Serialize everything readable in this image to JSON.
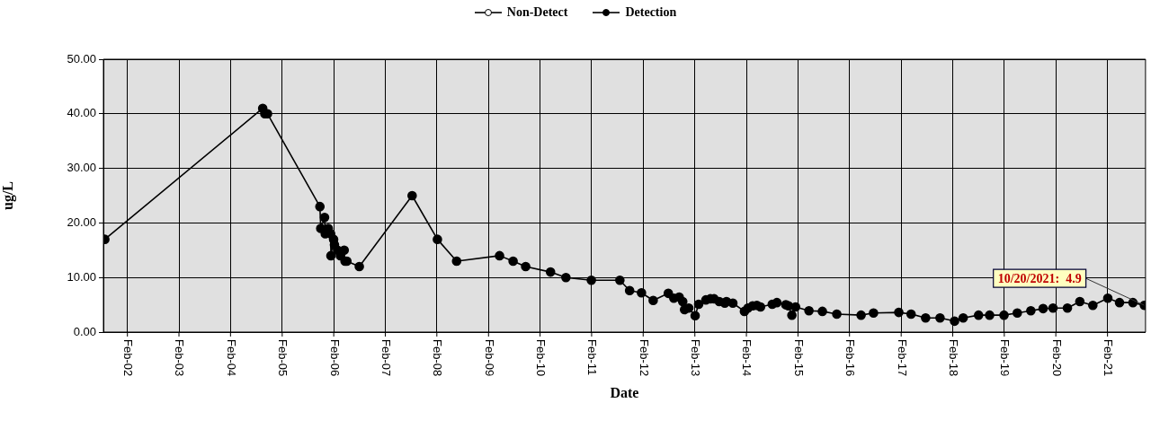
{
  "chart_data": {
    "type": "line",
    "xlabel": "Date",
    "ylabel": "ug/L",
    "xlim": [
      "2001-08-15",
      "2021-10-28"
    ],
    "xticks": [
      {
        "value": "2002-02-01",
        "label": "Feb-02"
      },
      {
        "value": "2003-02-01",
        "label": "Feb-03"
      },
      {
        "value": "2004-02-01",
        "label": "Feb-04"
      },
      {
        "value": "2005-02-01",
        "label": "Feb-05"
      },
      {
        "value": "2006-02-01",
        "label": "Feb-06"
      },
      {
        "value": "2007-02-01",
        "label": "Feb-07"
      },
      {
        "value": "2008-02-01",
        "label": "Feb-08"
      },
      {
        "value": "2009-02-01",
        "label": "Feb-09"
      },
      {
        "value": "2010-02-01",
        "label": "Feb-10"
      },
      {
        "value": "2011-02-01",
        "label": "Feb-11"
      },
      {
        "value": "2012-02-01",
        "label": "Feb-12"
      },
      {
        "value": "2013-02-01",
        "label": "Feb-13"
      },
      {
        "value": "2014-02-01",
        "label": "Feb-14"
      },
      {
        "value": "2015-02-01",
        "label": "Feb-15"
      },
      {
        "value": "2016-02-01",
        "label": "Feb-16"
      },
      {
        "value": "2017-02-01",
        "label": "Feb-17"
      },
      {
        "value": "2018-02-01",
        "label": "Feb-18"
      },
      {
        "value": "2019-02-01",
        "label": "Feb-19"
      },
      {
        "value": "2020-02-01",
        "label": "Feb-20"
      },
      {
        "value": "2021-02-01",
        "label": "Feb-21"
      }
    ],
    "ylim": [
      0,
      50
    ],
    "yticks": [
      {
        "value": 0,
        "label": "0.00"
      },
      {
        "value": 10,
        "label": "10.00"
      },
      {
        "value": 20,
        "label": "20.00"
      },
      {
        "value": 30,
        "label": "30.00"
      },
      {
        "value": 40,
        "label": "40.00"
      },
      {
        "value": 50,
        "label": "50.00"
      }
    ],
    "grid": true,
    "legend": "top",
    "marker": "circle",
    "line_style": "solid",
    "series": [
      {
        "name": "Non-Detect",
        "color": "#ffffff"
      },
      {
        "name": "Detection",
        "color": "#000000",
        "x": [
          "2001-08-25",
          "2004-09-16",
          "2004-10-01",
          "2004-10-20",
          "2005-10-26",
          "2005-11-01",
          "2005-11-28",
          "2005-12-03",
          "2005-12-24",
          "2006-01-10",
          "2006-01-12",
          "2006-01-31",
          "2006-02-06",
          "2006-02-28",
          "2006-03-20",
          "2006-04-16",
          "2006-04-22",
          "2006-05-05",
          "2006-08-01",
          "2007-08-10",
          "2008-02-05",
          "2008-06-20",
          "2009-04-20",
          "2009-07-25",
          "2009-10-22",
          "2010-04-16",
          "2010-08-03",
          "2011-01-30",
          "2011-08-20",
          "2011-10-28",
          "2012-01-20",
          "2012-04-12",
          "2012-07-28",
          "2012-09-05",
          "2012-10-13",
          "2012-11-07",
          "2012-11-20",
          "2012-12-20",
          "2013-02-03",
          "2013-02-28",
          "2013-04-20",
          "2013-05-22",
          "2013-06-17",
          "2013-07-24",
          "2013-09-01",
          "2013-09-13",
          "2013-10-28",
          "2014-01-18",
          "2014-02-12",
          "2014-03-17",
          "2014-04-16",
          "2014-05-12",
          "2014-08-03",
          "2014-09-05",
          "2014-11-07",
          "2014-11-26",
          "2014-12-20",
          "2015-01-15",
          "2015-04-20",
          "2015-07-24",
          "2015-11-03",
          "2016-04-23",
          "2016-07-20",
          "2017-01-15",
          "2017-04-12",
          "2017-07-24",
          "2017-11-03",
          "2018-02-14",
          "2018-04-16",
          "2018-08-03",
          "2018-10-20",
          "2019-01-30",
          "2019-05-04",
          "2019-08-08",
          "2019-11-03",
          "2020-01-12",
          "2020-04-23",
          "2020-07-20",
          "2020-10-20",
          "2021-02-03",
          "2021-04-27",
          "2021-07-31",
          "2021-10-20"
        ],
        "values": [
          17,
          41,
          40,
          40,
          23,
          19,
          21,
          18,
          19,
          18,
          14,
          17,
          16,
          15,
          14,
          15,
          13,
          13,
          12,
          25,
          17,
          13,
          14,
          13,
          12,
          11,
          10,
          9.5,
          9.5,
          7.6,
          7.2,
          5.8,
          7.1,
          6.2,
          6.4,
          5.6,
          4.1,
          4.4,
          3.0,
          5.1,
          5.9,
          6.1,
          6.1,
          5.6,
          5.3,
          5.6,
          5.3,
          3.8,
          4.4,
          4.8,
          4.9,
          4.6,
          5.1,
          5.4,
          5.0,
          4.8,
          3.1,
          4.6,
          3.9,
          3.8,
          3.3,
          3.1,
          3.5,
          3.6,
          3.3,
          2.6,
          2.6,
          2.0,
          2.6,
          3.1,
          3.1,
          3.1,
          3.5,
          3.9,
          4.3,
          4.4,
          4.4,
          5.6,
          4.9,
          6.2,
          5.4,
          5.4,
          4.9
        ]
      }
    ],
    "annotations": [
      {
        "text": "10/20/2021:  4.9",
        "x": "2021-10-20",
        "y": 4.9
      }
    ]
  }
}
